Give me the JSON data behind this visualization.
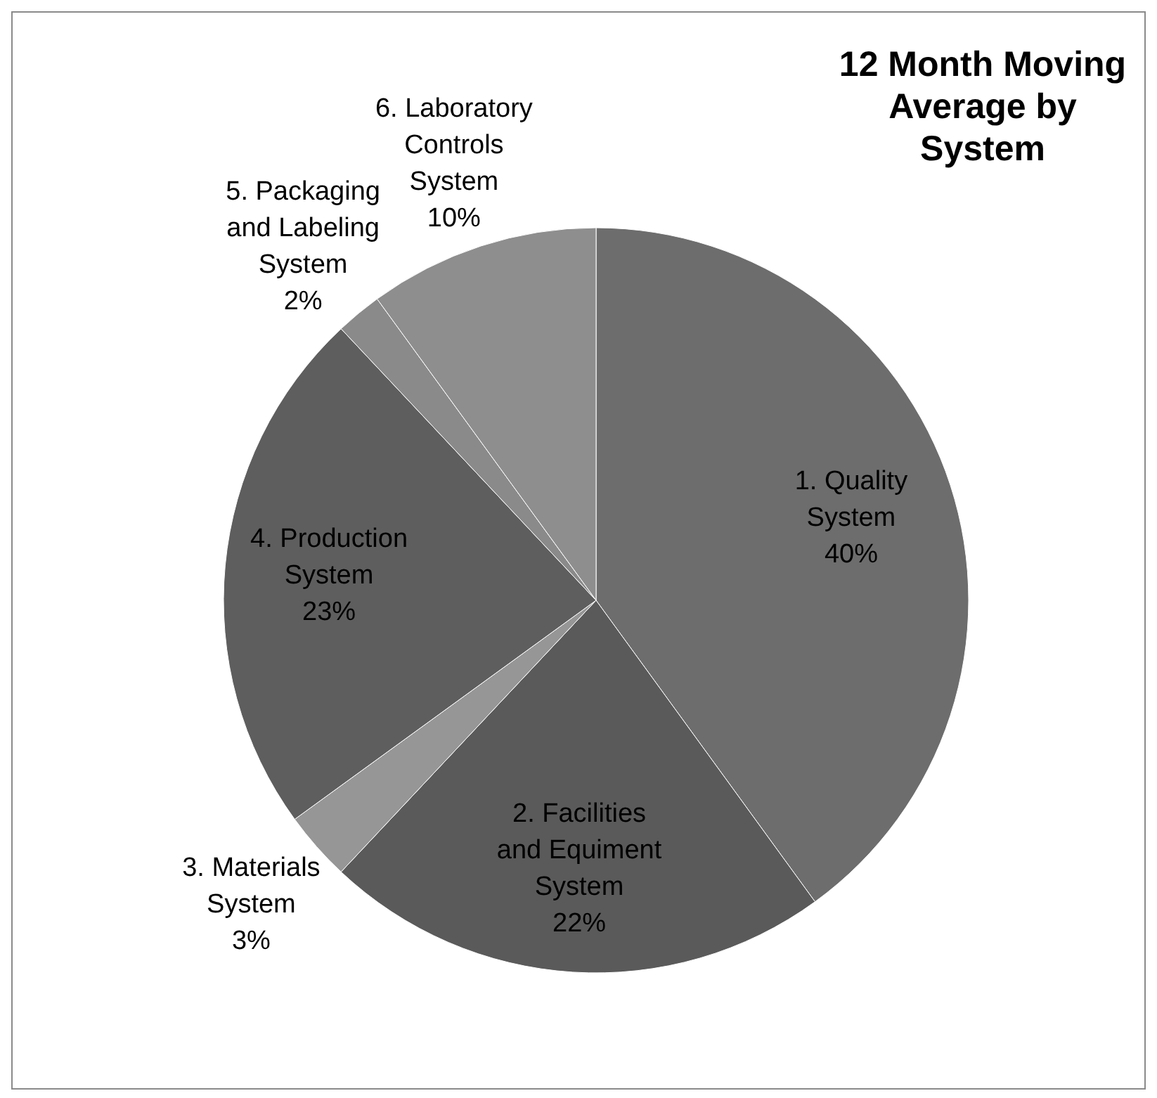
{
  "chart_data": {
    "type": "pie",
    "title": "12 Month Moving Average by System",
    "categories": [
      "1. Quality System",
      "2. Facilities and Equiment System",
      "3. Materials System",
      "4. Production System",
      "5. Packaging and Labeling System",
      "6. Laboratory Controls System"
    ],
    "values": [
      40,
      22,
      3,
      23,
      2,
      10
    ],
    "value_labels": [
      "40%",
      "22%",
      "3%",
      "23%",
      "2%",
      "10%"
    ],
    "colors": [
      "#6d6d6d",
      "#5a5a5a",
      "#969696",
      "#5e5e5e",
      "#8a8a8a",
      "#8e8e8e"
    ],
    "legend": false
  }
}
